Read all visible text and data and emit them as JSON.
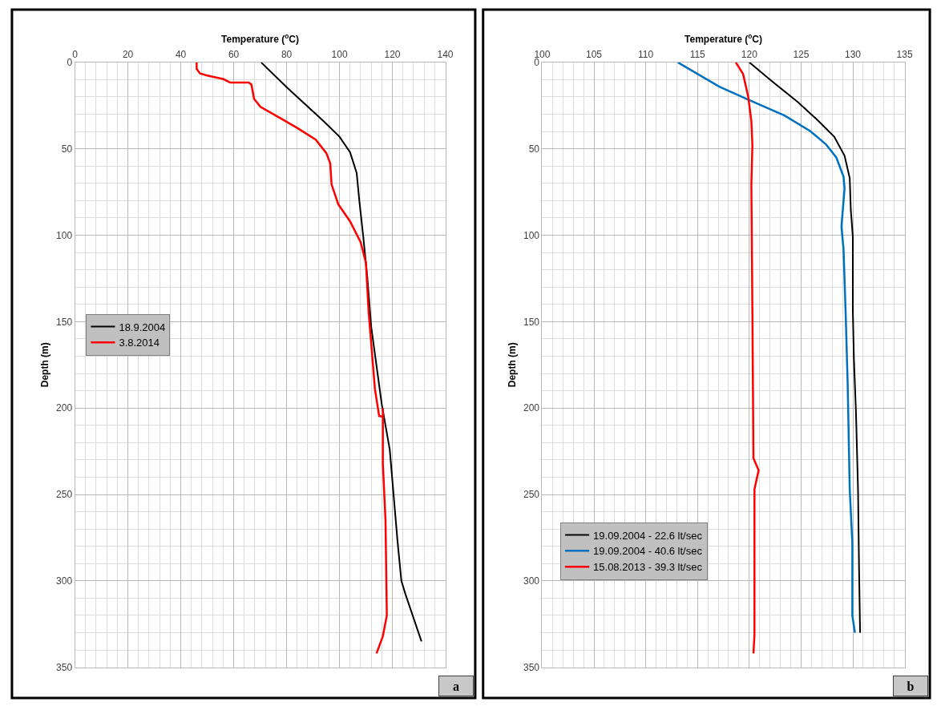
{
  "chart_data": [
    {
      "type": "line",
      "xlabel": "Temperature ($^{o}$C)",
      "ylabel": "Depth (m)",
      "xlim": [
        0,
        140
      ],
      "xticks": [
        0,
        20,
        40,
        60,
        80,
        100,
        120,
        140
      ],
      "ylim": [
        350,
        0
      ],
      "yticks": [
        0,
        50,
        100,
        150,
        200,
        250,
        300,
        350
      ],
      "grid": true,
      "legend": "left",
      "marker": "none",
      "line_style": "solid",
      "annotations": [
        "a"
      ],
      "series": [
        {
          "name": "18.9.2004",
          "color": "#000000",
          "x": [
            70.4,
            80,
            94,
            100,
            104,
            106.5,
            107.5,
            109,
            110.5,
            112,
            116,
            119,
            122,
            123.4,
            125,
            131
          ],
          "values": [
            0,
            14.3,
            34,
            43,
            52,
            64,
            80,
            101,
            124,
            153,
            198,
            224,
            278,
            300,
            308,
            335
          ]
        },
        {
          "name": "3.8.2014",
          "color": "#ff0000",
          "x": [
            46,
            46,
            47.3,
            49.7,
            51.7,
            56.2,
            58.7,
            65.7,
            66.7,
            67.7,
            70.1,
            78,
            84,
            91,
            95,
            96.5,
            97,
            99.5,
            104,
            108,
            110,
            111,
            113.4,
            115,
            116.4,
            116.4,
            116.4,
            117.4,
            117.9,
            116.4,
            114
          ],
          "values": [
            0,
            3.8,
            6.4,
            7.5,
            8.2,
            9.7,
            11.7,
            11.7,
            12.8,
            21,
            25.7,
            32.6,
            37.9,
            44.7,
            52.4,
            58.4,
            70.6,
            82,
            92,
            104,
            116,
            144,
            189,
            204.6,
            205,
            200,
            232,
            265,
            320,
            332,
            342
          ]
        }
      ]
    },
    {
      "type": "line",
      "xlabel": "Temperature ($^{o}$C)",
      "ylabel": "Depth (m)",
      "xlim": [
        100,
        135
      ],
      "xticks": [
        100,
        105,
        110,
        115,
        120,
        125,
        130,
        135
      ],
      "ylim": [
        350,
        0
      ],
      "yticks": [
        0,
        50,
        100,
        150,
        200,
        250,
        300,
        350
      ],
      "grid": true,
      "legend": "bottom left",
      "marker": "none",
      "line_style": "solid",
      "annotations": [
        "b"
      ],
      "series": [
        {
          "name": "19.09.2004 - 22.6 lt/sec",
          "color": "#000000",
          "x": [
            120.0,
            122.2,
            124.7,
            126.7,
            128.2,
            129.2,
            129.7,
            129.8,
            130.0,
            130.0,
            130.1,
            130.3,
            130.5,
            130.6,
            130.7
          ],
          "values": [
            0,
            11,
            23,
            34,
            43,
            54,
            67,
            85,
            101,
            144,
            171,
            202,
            247,
            293,
            330
          ]
        },
        {
          "name": "19.09.2004 - 40.6 lt/sec",
          "color": "#0070c0",
          "x": [
            113.1,
            117.1,
            119.9,
            123.4,
            125.9,
            127.4,
            128.4,
            129.1,
            129.2,
            128.9,
            129.1,
            129.3,
            129.5,
            129.7,
            129.95,
            129.95,
            130.2
          ],
          "values": [
            0,
            14,
            21.6,
            30.7,
            39.8,
            47.4,
            55,
            66,
            73,
            95,
            108,
            144,
            186,
            247,
            278,
            320,
            330
          ]
        },
        {
          "name": "15.08.2013 - 39.3 lt/sec",
          "color": "#ff0000",
          "x": [
            118.7,
            119.4,
            119.9,
            120.2,
            120.3,
            120.2,
            120.3,
            120.4,
            120.9,
            120.5,
            120.5,
            120.4
          ],
          "values": [
            0,
            6.7,
            20,
            34,
            48,
            70.6,
            144,
            229,
            236,
            247,
            331,
            342
          ]
        }
      ]
    }
  ]
}
